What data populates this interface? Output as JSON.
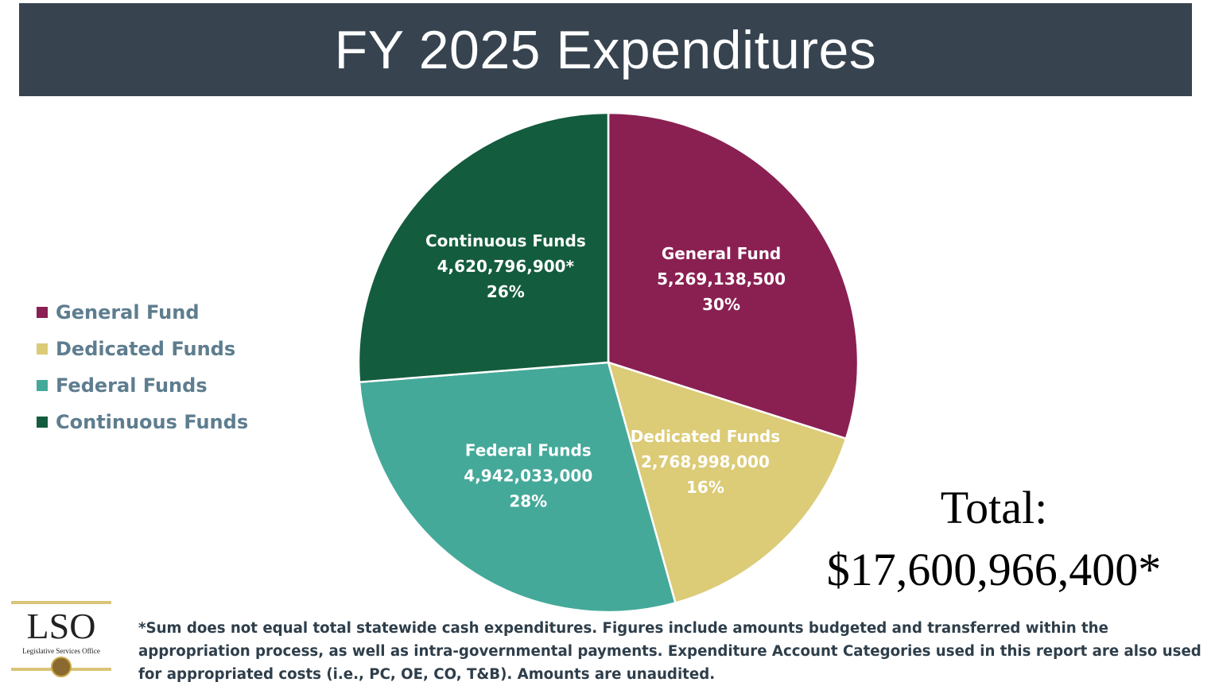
{
  "title": "FY 2025 Expenditures",
  "chart_data": {
    "type": "pie",
    "title": "FY 2025 Expenditures",
    "slices": [
      {
        "name": "General Fund",
        "value_label": "5,269,138,500",
        "value": 5269138500,
        "percent": 30,
        "percent_label": "30%",
        "color": "#8a2052"
      },
      {
        "name": "Dedicated Funds",
        "value_label": "2,768,998,000",
        "value": 2768998000,
        "percent": 16,
        "percent_label": "16%",
        "color": "#dccb77"
      },
      {
        "name": "Federal Funds",
        "value_label": "4,942,033,000",
        "value": 4942033000,
        "percent": 28,
        "percent_label": "28%",
        "color": "#45a99a"
      },
      {
        "name": "Continuous Funds",
        "value_label": "4,620,796,900*",
        "value": 4620796900,
        "percent": 26,
        "percent_label": "26%",
        "color": "#145c3e"
      }
    ],
    "legend": [
      "General Fund",
      "Dedicated Funds",
      "Federal Funds",
      "Continuous Funds"
    ],
    "legend_position": "left"
  },
  "total": {
    "label": "Total:",
    "value": "$17,600,966,400*"
  },
  "logo": {
    "text": "LSO",
    "subtitle": "Legislative Services Office",
    "rule_color": "#d9c57a"
  },
  "footnote": "*Sum does not equal total statewide cash expenditures. Figures include amounts budgeted and transferred within the appropriation process, as well as intra-governmental payments. Expenditure Account Categories used in this report are also used for appropriated costs (i.e., PC, OE, CO, T&B). Amounts are unaudited."
}
